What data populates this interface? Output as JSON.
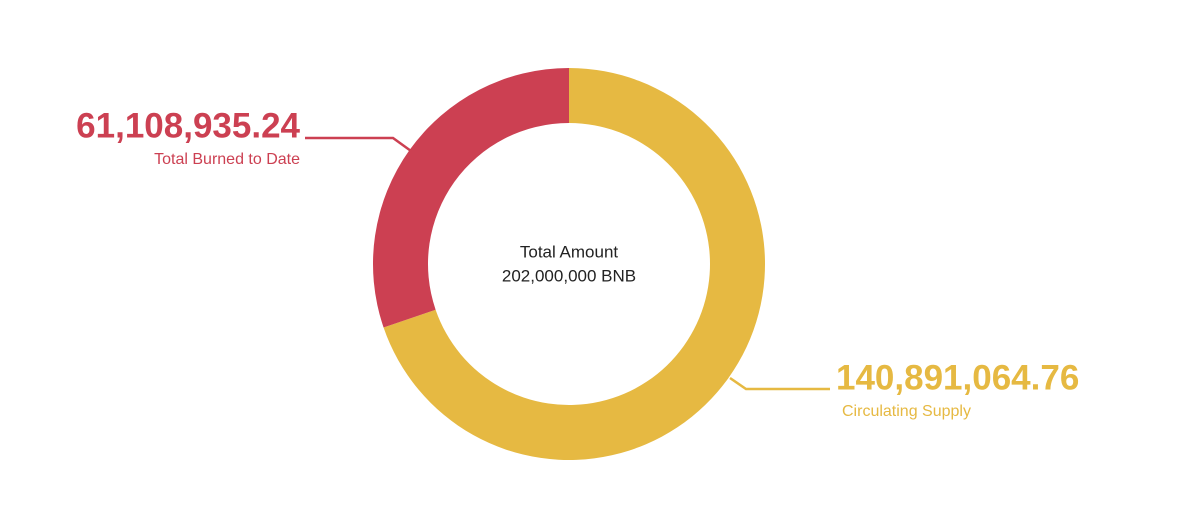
{
  "chart_data": {
    "type": "donut",
    "center_title": "Total Amount",
    "center_text": "202,000,000 BNB",
    "categories": [
      "Circulating Supply",
      "Total Burned to Date"
    ],
    "values": [
      140891064.76,
      61108935.24
    ],
    "value_labels": [
      "140,891,064.76",
      "61,108,935.24"
    ],
    "colors": [
      "#e6b942",
      "#cc4052"
    ]
  }
}
